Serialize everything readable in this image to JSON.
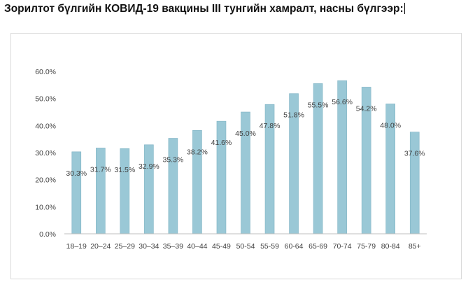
{
  "document": {
    "title": "Зорилтот бүлгийн КОВИД-19 вакцины III тунгийн хамралт, насны бүлгээр:"
  },
  "chart_data": {
    "type": "bar",
    "title": "",
    "xlabel": "",
    "ylabel": "",
    "categories": [
      "18–19",
      "20–24",
      "25–29",
      "30–34",
      "35–39",
      "40–44",
      "45-49",
      "50-54",
      "55-59",
      "60-64",
      "65-69",
      "70-74",
      "75-79",
      "80-84",
      "85+"
    ],
    "values": [
      30.3,
      31.7,
      31.5,
      32.9,
      35.3,
      38.2,
      41.6,
      45.0,
      47.8,
      51.8,
      55.5,
      56.6,
      54.2,
      48.0,
      37.6
    ],
    "data_labels": [
      "30.3%",
      "31.7%",
      "31.5%",
      "32.9%",
      "35.3%",
      "38.2%",
      "41.6%",
      "45.0%",
      "47.8%",
      "51.8%",
      "55.5%",
      "56.6%",
      "54.2%",
      "48.0%",
      "37.6%"
    ],
    "y_ticks": [
      0,
      10,
      20,
      30,
      40,
      50,
      60
    ],
    "y_tick_labels": [
      "0.0%",
      "10.0%",
      "20.0%",
      "30.0%",
      "40.0%",
      "50.0%",
      "60.0%"
    ],
    "ylim": [
      0,
      60
    ],
    "grid": false,
    "legend": "none",
    "bar_color": "#9ac8d6",
    "bar_edge_color": "#7fb3c4"
  }
}
